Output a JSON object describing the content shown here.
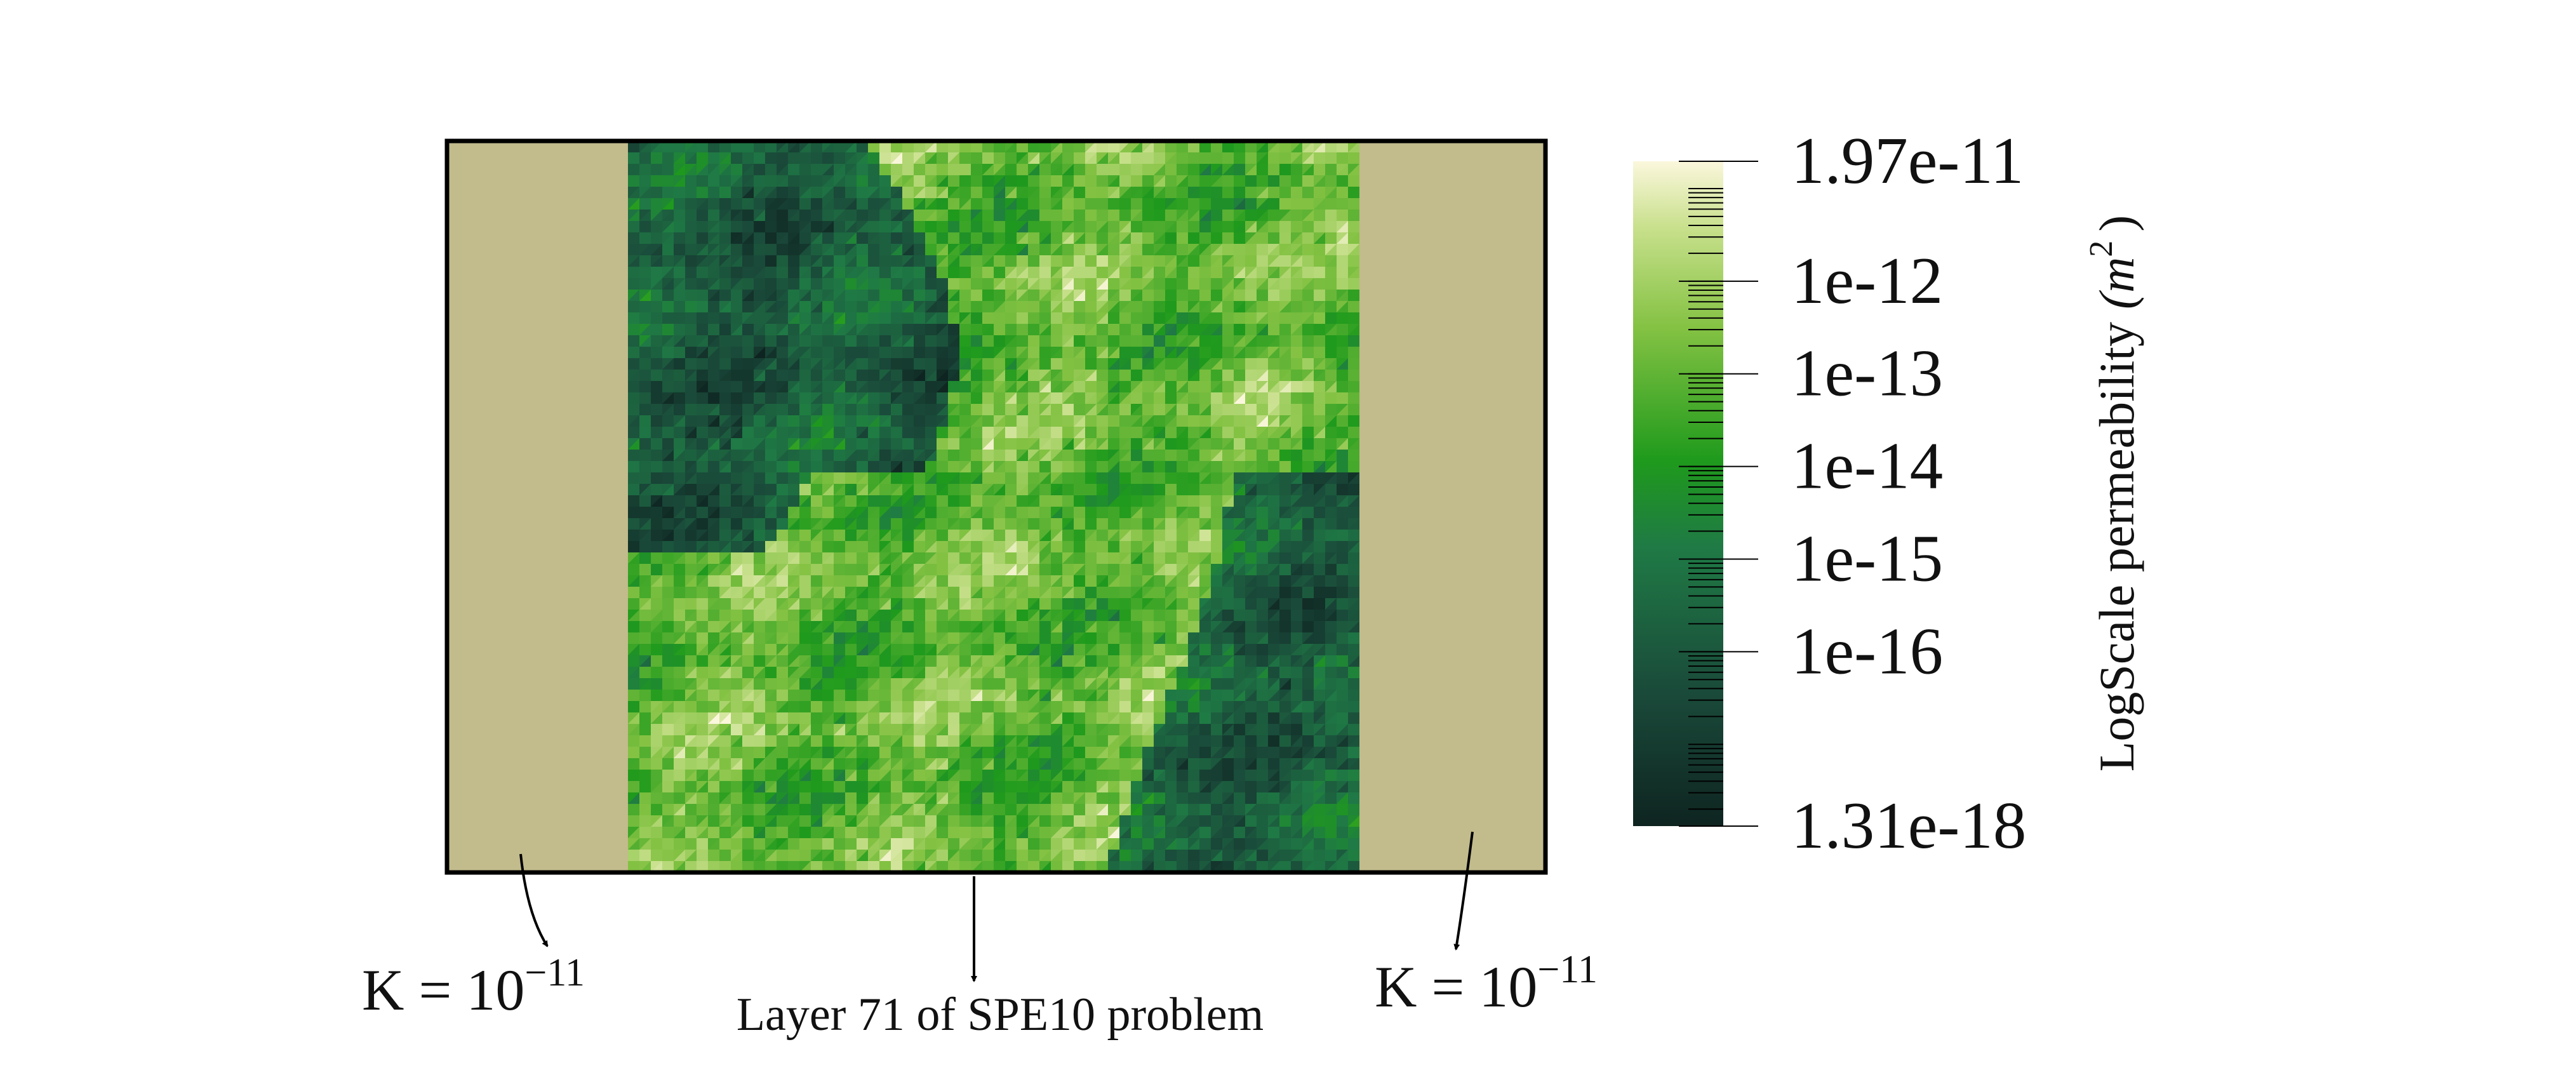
{
  "figure": {
    "colorbar": {
      "title": "LogScale permeability",
      "unit": "(m",
      "unit_power": "2",
      "unit_close": ")",
      "ticks": [
        {
          "value": 1.97e-11,
          "label": "1.97e-11"
        },
        {
          "value": 1e-12,
          "label": "1e-12"
        },
        {
          "value": 1e-13,
          "label": "1e-13"
        },
        {
          "value": 1e-14,
          "label": "1e-14"
        },
        {
          "value": 1e-15,
          "label": "1e-15"
        },
        {
          "value": 1e-16,
          "label": "1e-16"
        },
        {
          "value": 1.31e-18,
          "label": "1.31e-18"
        }
      ]
    },
    "annotations": {
      "left": {
        "text": "K = 10",
        "power": "−11"
      },
      "middle": {
        "text": "Layer 71 of SPE10 problem"
      },
      "right": {
        "text": "K = 10",
        "power": "−11"
      }
    }
  }
}
